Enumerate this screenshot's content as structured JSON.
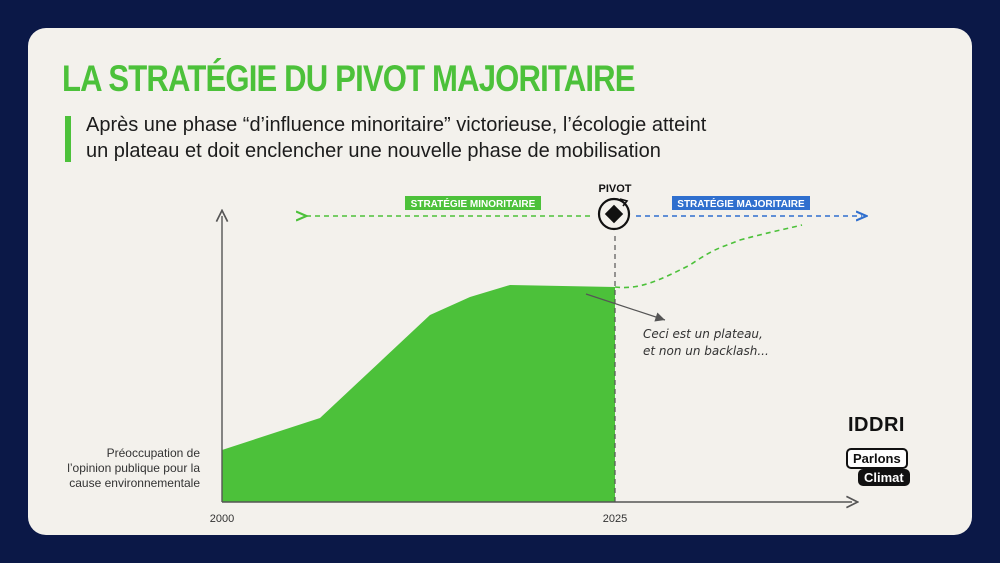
{
  "title": "LA STRATÉGIE DU PIVOT MAJORITAIRE",
  "subtitle": {
    "line1": "Après une phase “d’influence minoritaire” victorieuse, l’écologie atteint",
    "line2": "un plateau et doit enclencher une nouvelle phase de mobilisation"
  },
  "chart_data": {
    "type": "area",
    "x_ticks": [
      "2000",
      "2025"
    ],
    "ylabel": [
      "Préoccupation de",
      "l’opinion publique pour la",
      "cause environnementale"
    ],
    "strategies": {
      "minority": "STRATÉGIE MINORITAIRE",
      "majority": "STRATÉGIE MAJORITAIRE",
      "pivot": "PIVOT"
    },
    "annotation": [
      "Ceci est un plateau,",
      "et non un backlash..."
    ],
    "colors": {
      "area": "#4cc13a",
      "minority": "#4cc13a",
      "majority": "#2f6fce",
      "axis": "#555555"
    }
  },
  "logos": {
    "iddri": "IDDRI",
    "parlons": "Parlons",
    "climat": "Climat"
  }
}
